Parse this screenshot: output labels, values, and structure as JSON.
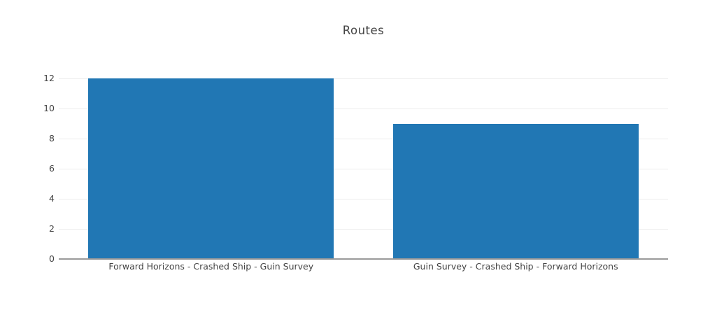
{
  "chart_data": {
    "type": "bar",
    "title": "Routes",
    "categories": [
      "Forward Horizons - Crashed Ship - Guin Survey",
      "Guin Survey - Crashed Ship - Forward Horizons"
    ],
    "values": [
      12,
      9
    ],
    "xlabel": "",
    "ylabel": "",
    "ylim": [
      0,
      12
    ],
    "yticks": [
      0,
      2,
      4,
      6,
      8,
      10,
      12
    ],
    "grid": true,
    "legend": false,
    "bar_color": "#2177b4",
    "gridline_color": "#ededed",
    "axis_line_color": "#9a9a9a",
    "text_color": "#444444",
    "background_color": "#ffffff"
  }
}
